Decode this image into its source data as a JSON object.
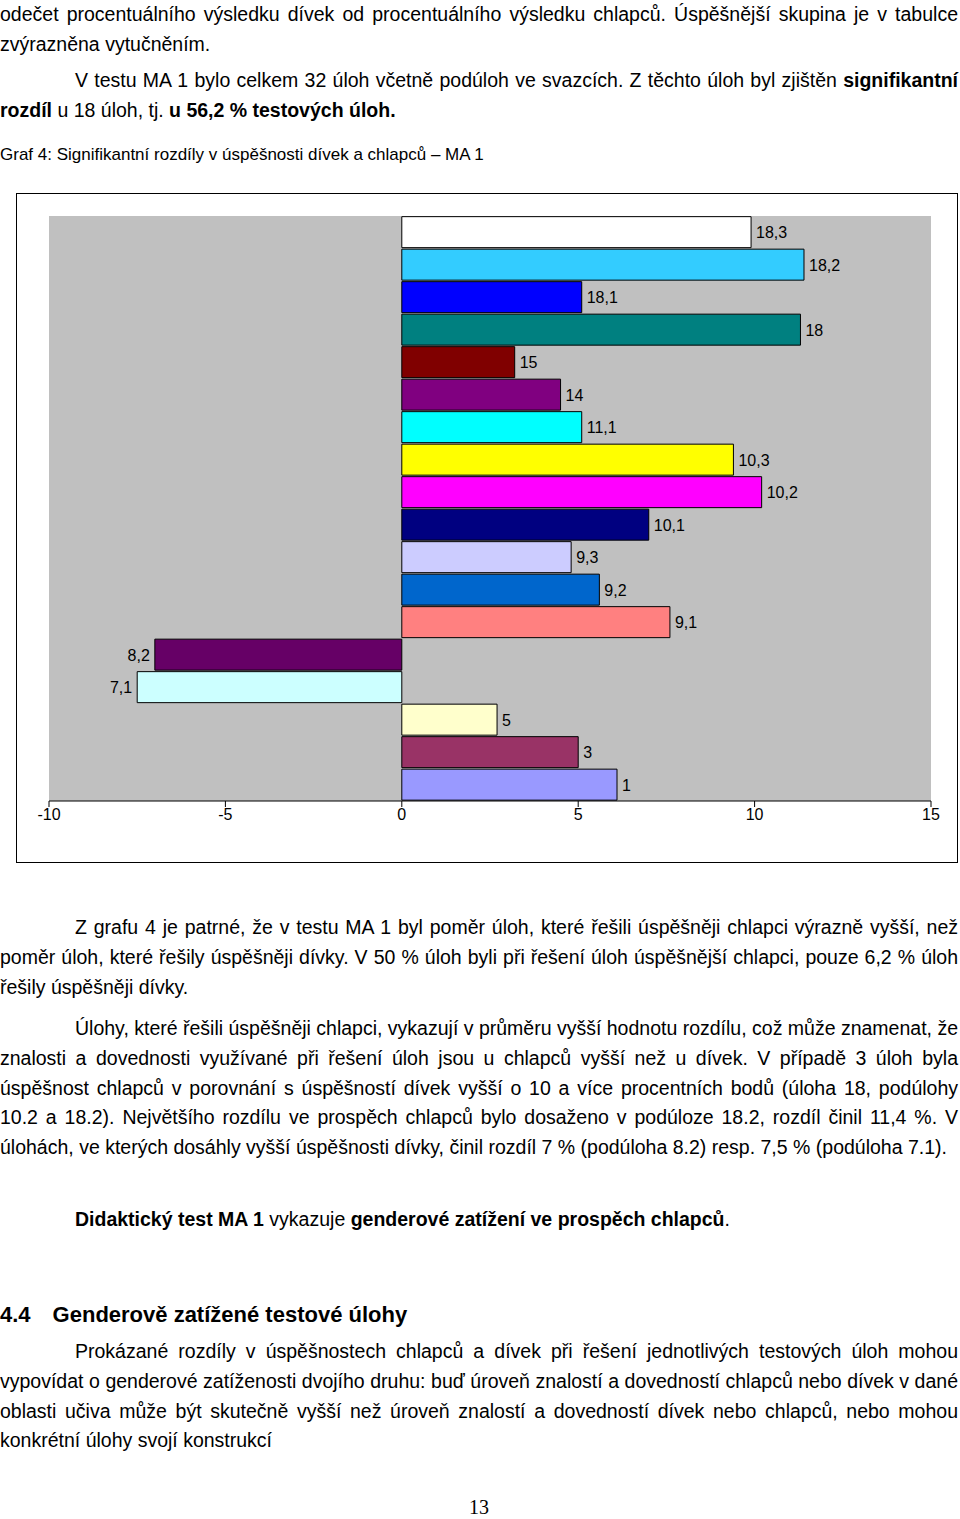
{
  "page": {
    "paragraphs_before": [
      [
        {
          "text": "odečet procentuálního výsledku dívek od procentuálního výsledku chlapců. Úspěšnější skupina je v tabulce zvýrazněna vytučněním."
        }
      ],
      [
        {
          "text": "V testu MA 1 bylo celkem 32 úloh včetně podúloh ve svazcích. Z těchto úloh byl zjištěn "
        },
        {
          "text": "signifikantní rozdíl",
          "bold": true
        },
        {
          "text": " u 18 úloh, tj. "
        },
        {
          "text": "u 56,2 % testových úloh.",
          "bold": true
        }
      ]
    ],
    "caption": "Graf 4: Signifikantní rozdíly v úspěšnosti dívek a chlapců – MA 1",
    "paragraphs_after": [
      [
        {
          "text": "Z grafu 4 je patrné, že v testu MA 1 byl poměr úloh, které řešili úspěšněji chlapci výrazně vyšší, než poměr úloh, které řešily úspěšněji dívky. V 50 % úloh byli při řešení úloh úspěšnější chlapci, pouze 6,2 % úloh řešily úspěšněji dívky."
        }
      ],
      [
        {
          "text": "Úlohy, které řešili úspěšněji chlapci, vykazují v průměru vyšší hodnotu rozdílu, což může znamenat, že znalosti a dovednosti využívané při řešení úloh jsou u chlapců vyšší než u dívek. V případě 3 úloh byla úspěšnost chlapců v porovnání s úspěšností dívek vyšší o 10 a více procentních bodů (úloha 18, podúlohy 10.2 a 18.2). Největšího rozdílu ve prospěch chlapců bylo dosaženo v podúloze 18.2, rozdíl činil 11,4 %. V úlohách, ve kterých dosáhly vyšší úspěšnosti dívky, činil rozdíl 7 % (podúloha 8.2) resp. 7,5 % (podúloha 7.1)."
        }
      ],
      [
        {
          "text": "Didaktický test MA 1",
          "bold": true
        },
        {
          "text": " vykazuje "
        },
        {
          "text": "genderové zatížení ve prospěch chlapců",
          "bold": true
        },
        {
          "text": "."
        }
      ]
    ],
    "section": {
      "number": "4.4",
      "title": "Genderově zatížené testové úlohy"
    },
    "paragraph_last": [
      {
        "text": "Prokázané rozdíly v úspěšnostech chlapců a dívek při řešení jednotlivých testových úloh mohou vypovídat o genderové zatíženosti dvojího druhu: buď úroveň znalostí a dovedností chlapců nebo dívek v dané oblasti učiva může být skutečně vyšší než úroveň znalostí a dovedností dívek nebo chlapců, nebo mohou konkrétní úlohy svojí konstrukcí"
      }
    ],
    "page_number": "13"
  },
  "chart_data": {
    "type": "bar",
    "orientation": "horizontal",
    "categories": [
      "18,3",
      "18,2",
      "18,1",
      "18",
      "15",
      "14",
      "11,1",
      "10,3",
      "10,2",
      "10,1",
      "9,3",
      "9,2",
      "9,1",
      "8,2",
      "7,1",
      "5",
      "3",
      "1"
    ],
    "values": [
      9.9,
      11.4,
      5.1,
      11.3,
      3.2,
      4.5,
      5.1,
      9.4,
      10.2,
      7.0,
      4.8,
      5.6,
      7.6,
      -7.0,
      -7.5,
      2.7,
      5.0,
      6.1
    ],
    "colors": [
      "#ffffff",
      "#33ccff",
      "#0000ff",
      "#008080",
      "#800000",
      "#800080",
      "#00ffff",
      "#ffff00",
      "#ff00ff",
      "#000080",
      "#ccccff",
      "#0066cc",
      "#ff8080",
      "#660066",
      "#ccffff",
      "#ffffcc",
      "#993366",
      "#9999ff"
    ],
    "xlim": [
      -10,
      15
    ],
    "xticks": [
      -10,
      -5,
      0,
      5,
      10,
      15
    ],
    "grid": false,
    "tick_labels": "x"
  }
}
